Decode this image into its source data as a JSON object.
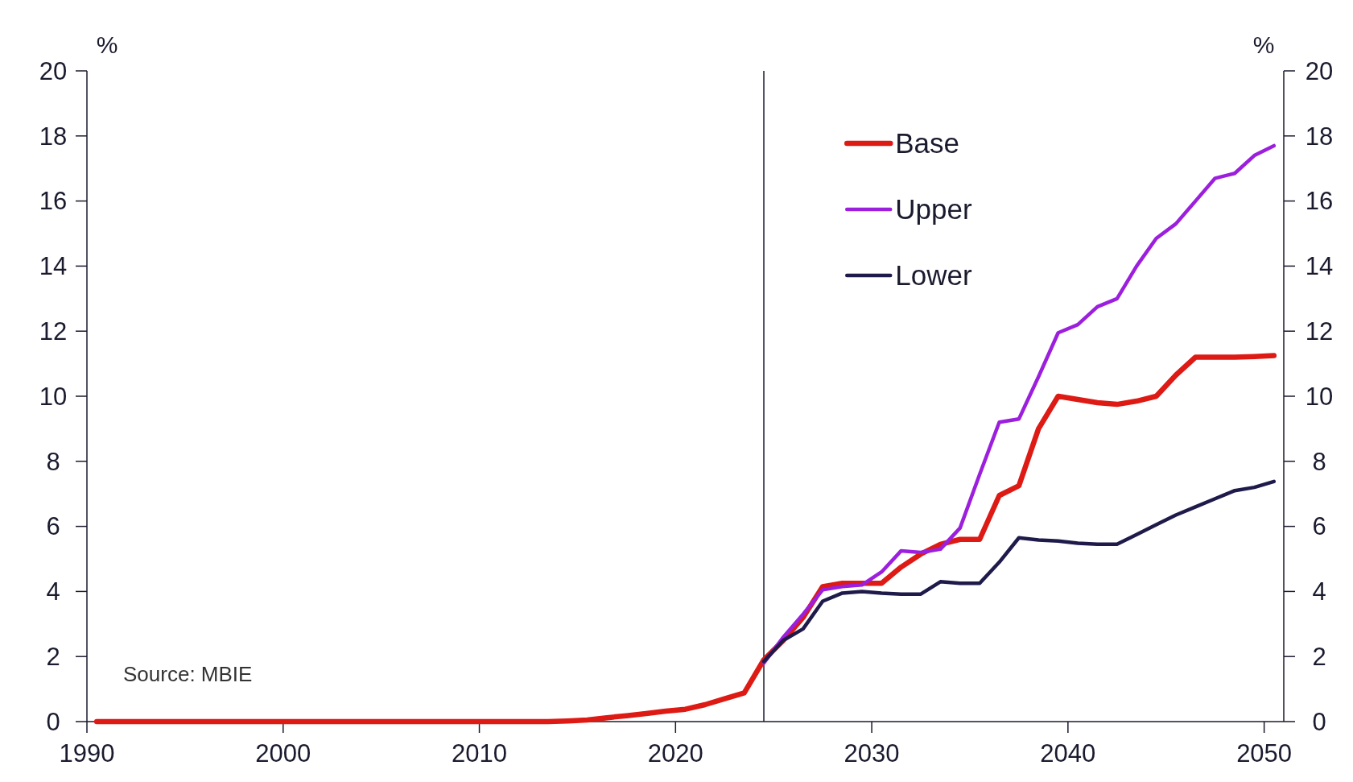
{
  "chart_data": {
    "type": "line",
    "ylabel": "%",
    "y2label": "%",
    "xlim": [
      1990,
      2051
    ],
    "xticks": [
      1990,
      2000,
      2010,
      2020,
      2030,
      2040,
      2050
    ],
    "ylim": [
      0,
      20
    ],
    "yticks": [
      0,
      2,
      4,
      6,
      8,
      10,
      12,
      14,
      16,
      18,
      20
    ],
    "y2lim": [
      0,
      20
    ],
    "y2ticks": [
      0,
      2,
      4,
      6,
      8,
      10,
      12,
      14,
      16,
      18,
      20
    ],
    "legend": "top right",
    "grid": false,
    "line_style": "solid",
    "marker": "none",
    "ref_lines": [
      {
        "axis": "x",
        "value": 2024.5,
        "color": "#1a1a2e"
      }
    ],
    "annotations": [
      "Source: MBIE"
    ],
    "series": [
      {
        "name": "Base",
        "color": "#dd1a14",
        "x": [
          1990.5,
          1991.5,
          1992.5,
          1993.5,
          1994.5,
          1995.5,
          1996.5,
          1997.5,
          1998.5,
          1999.5,
          2000.5,
          2001.5,
          2002.5,
          2003.5,
          2004.5,
          2005.5,
          2006.5,
          2007.5,
          2008.5,
          2009.5,
          2010.5,
          2011.5,
          2012.5,
          2013.5,
          2014.5,
          2015.5,
          2016.5,
          2017.5,
          2018.5,
          2019.5,
          2020.5,
          2021.5,
          2022.5,
          2023.5,
          2024.5,
          2025.5,
          2026.5,
          2027.5,
          2028.5,
          2029.5,
          2030.5,
          2031.5,
          2032.5,
          2033.5,
          2034.5,
          2035.5,
          2036.5,
          2037.5,
          2038.5,
          2039.5,
          2040.5,
          2041.5,
          2042.5,
          2043.5,
          2044.5,
          2045.5,
          2046.5,
          2047.5,
          2048.5,
          2049.5,
          2050.5
        ],
        "values": [
          0,
          0,
          0,
          0,
          0,
          0,
          0,
          0,
          0,
          0,
          0,
          0,
          0,
          0,
          0,
          0,
          0,
          0,
          0,
          0,
          0,
          0,
          0,
          0,
          0.02,
          0.05,
          0.12,
          0.18,
          0.25,
          0.32,
          0.38,
          0.52,
          0.7,
          0.88,
          1.9,
          2.5,
          3.2,
          4.15,
          4.25,
          4.25,
          4.25,
          4.75,
          5.15,
          5.45,
          5.6,
          5.6,
          6.95,
          7.25,
          9.0,
          10.0,
          9.9,
          9.8,
          9.75,
          9.85,
          10.0,
          10.65,
          11.2,
          11.2,
          11.2,
          11.22,
          11.25
        ]
      },
      {
        "name": "Upper",
        "color": "#9b1fdd",
        "x": [
          2024.5,
          2025.5,
          2026.5,
          2027.5,
          2028.5,
          2029.5,
          2030.5,
          2031.5,
          2032.5,
          2033.5,
          2034.5,
          2035.5,
          2036.5,
          2037.5,
          2038.5,
          2039.5,
          2040.5,
          2041.5,
          2042.5,
          2043.5,
          2044.5,
          2045.5,
          2046.5,
          2047.5,
          2048.5,
          2049.5,
          2050.5
        ],
        "values": [
          1.8,
          2.6,
          3.3,
          4.05,
          4.15,
          4.2,
          4.6,
          5.25,
          5.2,
          5.3,
          5.95,
          7.6,
          9.2,
          9.3,
          10.6,
          11.95,
          12.2,
          12.75,
          13.0,
          14.0,
          14.85,
          15.3,
          16.0,
          16.7,
          16.85,
          17.4,
          17.7
        ]
      },
      {
        "name": "Lower",
        "color": "#1e1b4b",
        "x": [
          2024.5,
          2025.5,
          2026.5,
          2027.5,
          2028.5,
          2029.5,
          2030.5,
          2031.5,
          2032.5,
          2033.5,
          2034.5,
          2035.5,
          2036.5,
          2037.5,
          2038.5,
          2039.5,
          2040.5,
          2041.5,
          2042.5,
          2043.5,
          2044.5,
          2045.5,
          2046.5,
          2047.5,
          2048.5,
          2049.5,
          2050.5
        ],
        "values": [
          1.85,
          2.5,
          2.85,
          3.7,
          3.95,
          4.0,
          3.95,
          3.92,
          3.92,
          4.3,
          4.25,
          4.25,
          4.9,
          5.65,
          5.58,
          5.55,
          5.48,
          5.45,
          5.45,
          5.75,
          6.05,
          6.35,
          6.6,
          6.85,
          7.1,
          7.2,
          7.38
        ]
      }
    ]
  }
}
